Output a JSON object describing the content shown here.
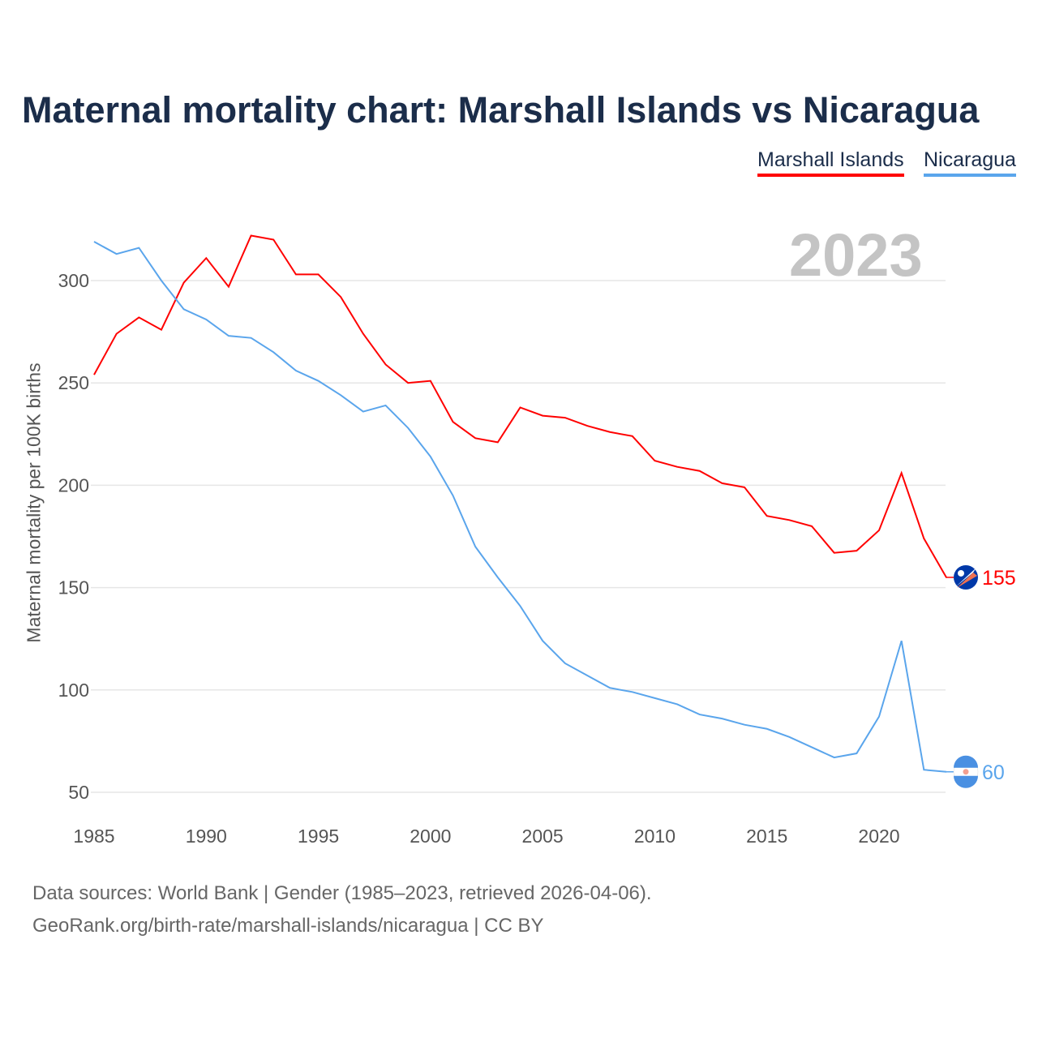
{
  "title": "Maternal mortality chart: Marshall Islands vs Nicaragua",
  "year_label": "2023",
  "footer": {
    "line1": "Data sources: World Bank | Gender (1985–2023, retrieved 2026-04-06).",
    "line2": "GeoRank.org/birth-rate/marshall-islands/nicaragua | CC BY"
  },
  "chart_data": {
    "type": "line",
    "title": "Maternal mortality chart: Marshall Islands vs Nicaragua",
    "xlabel": "",
    "ylabel": "Maternal mortality per 100K births",
    "xlim": [
      1985,
      2023
    ],
    "ylim": [
      50,
      320
    ],
    "xticks": [
      1985,
      1990,
      1995,
      2000,
      2005,
      2010,
      2015,
      2020
    ],
    "yticks": [
      50,
      100,
      150,
      200,
      250,
      300
    ],
    "grid": true,
    "legend_placement": "top-right",
    "x": [
      1985,
      1986,
      1987,
      1988,
      1989,
      1990,
      1991,
      1992,
      1993,
      1994,
      1995,
      1996,
      1997,
      1998,
      1999,
      2000,
      2001,
      2002,
      2003,
      2004,
      2005,
      2006,
      2007,
      2008,
      2009,
      2010,
      2011,
      2012,
      2013,
      2014,
      2015,
      2016,
      2017,
      2018,
      2019,
      2020,
      2021,
      2022,
      2023
    ],
    "series": [
      {
        "name": "Marshall Islands",
        "color": "#ff0000",
        "end_label": "155",
        "values": [
          254,
          274,
          282,
          276,
          299,
          311,
          297,
          322,
          320,
          303,
          303,
          292,
          274,
          259,
          250,
          251,
          231,
          223,
          221,
          238,
          234,
          233,
          229,
          226,
          224,
          212,
          209,
          207,
          201,
          199,
          185,
          183,
          180,
          167,
          168,
          178,
          206,
          174,
          155
        ]
      },
      {
        "name": "Nicaragua",
        "color": "#5aa5ec",
        "end_label": "60",
        "values": [
          319,
          313,
          316,
          300,
          286,
          281,
          273,
          272,
          265,
          256,
          251,
          244,
          236,
          239,
          228,
          214,
          195,
          170,
          155,
          141,
          124,
          113,
          107,
          101,
          99,
          96,
          93,
          88,
          86,
          83,
          81,
          77,
          72,
          67,
          69,
          87,
          124,
          61,
          60
        ]
      }
    ]
  }
}
